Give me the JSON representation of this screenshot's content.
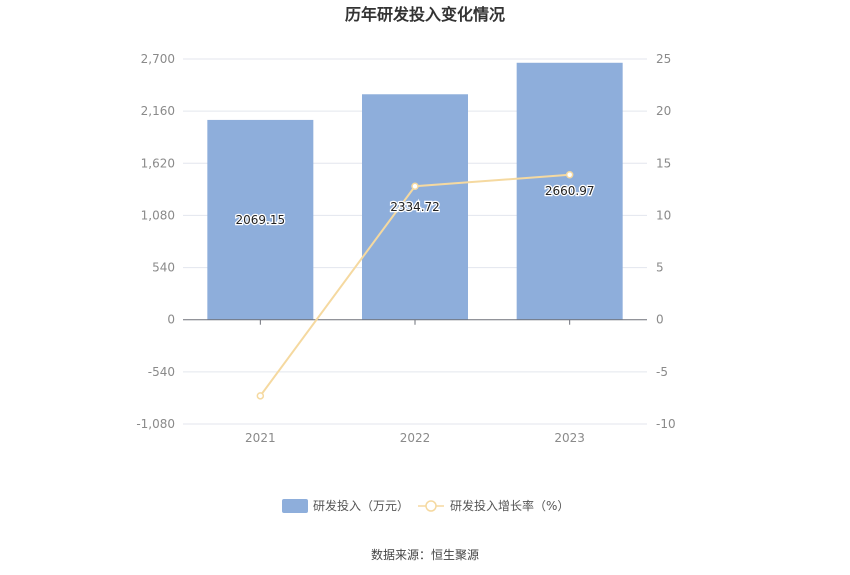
{
  "chart_data": {
    "type": "bar",
    "title": "历年研发投入变化情况",
    "categories": [
      "2021",
      "2022",
      "2023"
    ],
    "series": [
      {
        "name": "研发投入（万元）",
        "type": "bar",
        "axis": "left",
        "values": [
          2069.15,
          2334.72,
          2660.97
        ],
        "labels": [
          "2069.15",
          "2334.72",
          "2660.97"
        ],
        "color": "#8eaedb"
      },
      {
        "name": "研发投入增长率（%）",
        "type": "line",
        "axis": "right",
        "values": [
          -7.3,
          12.8,
          13.9
        ],
        "color": "#f5d9a0"
      }
    ],
    "y_left": {
      "min": -1080,
      "max": 2700,
      "ticks": [
        2700,
        2160,
        1620,
        1080,
        540,
        0,
        -540,
        -1080
      ],
      "tick_labels": [
        "2,700",
        "2,160",
        "1,620",
        "1,080",
        "540",
        "0",
        "-540",
        "-1,080"
      ]
    },
    "y_right": {
      "min": -10,
      "max": 25,
      "ticks": [
        25,
        20,
        15,
        10,
        5,
        0,
        -5,
        -10
      ],
      "tick_labels": [
        "25",
        "20",
        "15",
        "10",
        "5",
        "0",
        "-5",
        "-10"
      ]
    },
    "grid": true,
    "legend": "bottom-center",
    "source": "数据来源：恒生聚源"
  }
}
